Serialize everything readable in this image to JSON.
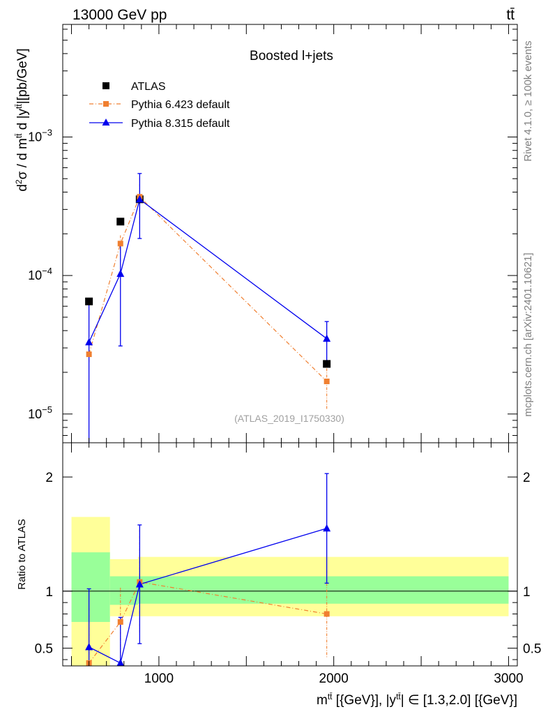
{
  "header": {
    "energy_label": "13000 GeV pp",
    "process_label": "tt̄"
  },
  "side_labels": {
    "rivet": "Rivet 4.1.0, ≥ 100k events",
    "mcplots": "mcplots.cern.ch [arXiv:2401.10621]"
  },
  "colors": {
    "atlas": "#000000",
    "pythia6": "#f07f30",
    "pythia8": "#0000ee",
    "band_inner": "#99ff99",
    "band_outer": "#ffff99"
  },
  "chart_data": [
    {
      "type": "scatter",
      "panel": "main",
      "title": "Boosted l+jets",
      "ylabel": "d²σ / d mᵗᵗ d |yᵗᵗ|[pb/GeV]",
      "yscale": "log",
      "xlim": [
        450,
        3050
      ],
      "ylim": [
        6.2e-06,
        0.0065
      ],
      "y_ticks": [
        {
          "value": 1e-05,
          "base": "10",
          "exp": "−5"
        },
        {
          "value": 0.0001,
          "base": "10",
          "exp": "−4"
        },
        {
          "value": 0.001,
          "base": "10",
          "exp": "−3"
        }
      ],
      "watermark": "(ATLAS_2019_I1750330)",
      "legend_position": "top-left",
      "series": [
        {
          "name": "ATLAS",
          "style": "square-marker",
          "x": [
            600,
            780,
            890,
            1960
          ],
          "y": [
            6.5e-05,
            0.000245,
            0.000355,
            2.3e-05
          ]
        },
        {
          "name": "Pythia 6.423 default",
          "style": "dash-dot-square",
          "x": [
            600,
            780,
            890,
            1960
          ],
          "y": [
            2.7e-05,
            0.00017,
            0.00037,
            1.72e-05
          ],
          "err": [
            3.5e-06,
            2.5e-05,
            0.00014,
            6.5e-06
          ]
        },
        {
          "name": "Pythia 8.315 default",
          "style": "solid-triangle",
          "x": [
            600,
            780,
            890,
            1960
          ],
          "y": [
            3.3e-05,
            0.000103,
            0.000355,
            3.5e-05
          ],
          "err_low": [
            2.9e-05,
            7.2e-05,
            0.00017,
            1.15e-05
          ],
          "err_high": [
            2.9e-05,
            7.2e-05,
            0.00019,
            1.15e-05
          ]
        }
      ]
    },
    {
      "type": "scatter",
      "panel": "ratio",
      "ylabel": "Ratio to ATLAS",
      "xlabel": "mᵗᵗ [{GeV}], |yᵗᵗ| ∈ [1.3,2.0] [{GeV}]",
      "xlim": [
        450,
        3050
      ],
      "ylim": [
        0.345,
        2.3
      ],
      "x_ticks": [
        1000,
        2000,
        3000
      ],
      "x_tick_labels": [
        "1000",
        "2000",
        "3000"
      ],
      "y_ticks": [
        0.5,
        1,
        2
      ],
      "y_tick_labels": [
        "0.5",
        "1",
        "2"
      ],
      "bands": [
        {
          "x0": 500,
          "x1": 720,
          "inner": [
            0.73,
            1.34
          ],
          "outer": [
            0.345,
            1.65
          ]
        },
        {
          "x0": 720,
          "x1": 880,
          "inner": [
            0.88,
            1.13
          ],
          "outer": [
            0.78,
            1.28
          ]
        },
        {
          "x0": 880,
          "x1": 3000,
          "inner": [
            0.89,
            1.13
          ],
          "outer": [
            0.78,
            1.3
          ]
        }
      ],
      "series": [
        {
          "name": "Pythia 6.423 default",
          "x": [
            600,
            780,
            890,
            1960
          ],
          "y": [
            0.37,
            0.73,
            1.08,
            0.8
          ],
          "err": [
            0.48,
            0.3,
            0.46,
            0.38
          ]
        },
        {
          "name": "Pythia 8.315 default",
          "x": [
            600,
            780,
            890,
            1960
          ],
          "y": [
            0.51,
            0.37,
            1.06,
            1.55
          ],
          "err_low": [
            0.51,
            0.3,
            0.52,
            0.48
          ],
          "err_high": [
            0.51,
            0.4,
            0.52,
            0.48
          ]
        }
      ]
    }
  ]
}
